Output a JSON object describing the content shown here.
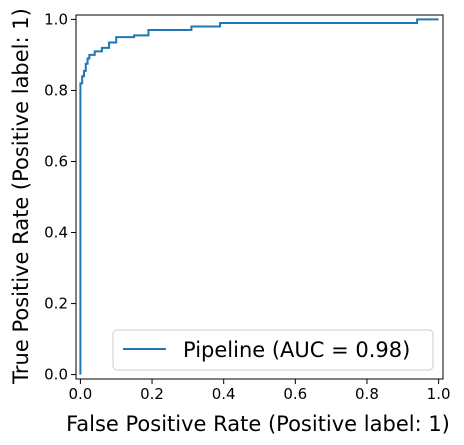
{
  "chart_data": {
    "type": "line",
    "xlabel": "False Positive Rate (Positive label: 1)",
    "ylabel": "True Positive Rate (Positive label: 1)",
    "xlim": [
      0.0,
      1.0
    ],
    "ylim": [
      0.0,
      1.0
    ],
    "xticks": [
      "0.0",
      "0.2",
      "0.4",
      "0.6",
      "0.8",
      "1.0"
    ],
    "yticks": [
      "0.0",
      "0.2",
      "0.4",
      "0.6",
      "0.8",
      "1.0"
    ],
    "grid": false,
    "legend_position": "bottom-right",
    "colors": {
      "series": "#1f77b4"
    },
    "series": [
      {
        "name": "Pipeline (AUC = 0.98)",
        "x": [
          0.0,
          0.0,
          0.005,
          0.005,
          0.01,
          0.01,
          0.015,
          0.015,
          0.02,
          0.02,
          0.025,
          0.025,
          0.04,
          0.04,
          0.06,
          0.06,
          0.08,
          0.08,
          0.1,
          0.1,
          0.15,
          0.15,
          0.19,
          0.19,
          0.31,
          0.31,
          0.39,
          0.39,
          0.94,
          0.94,
          1.0
        ],
        "y": [
          0.0,
          0.82,
          0.82,
          0.84,
          0.84,
          0.855,
          0.855,
          0.875,
          0.875,
          0.89,
          0.89,
          0.9,
          0.9,
          0.91,
          0.91,
          0.92,
          0.92,
          0.935,
          0.935,
          0.95,
          0.95,
          0.955,
          0.955,
          0.97,
          0.97,
          0.98,
          0.98,
          0.99,
          0.99,
          1.0,
          1.0
        ]
      }
    ]
  }
}
